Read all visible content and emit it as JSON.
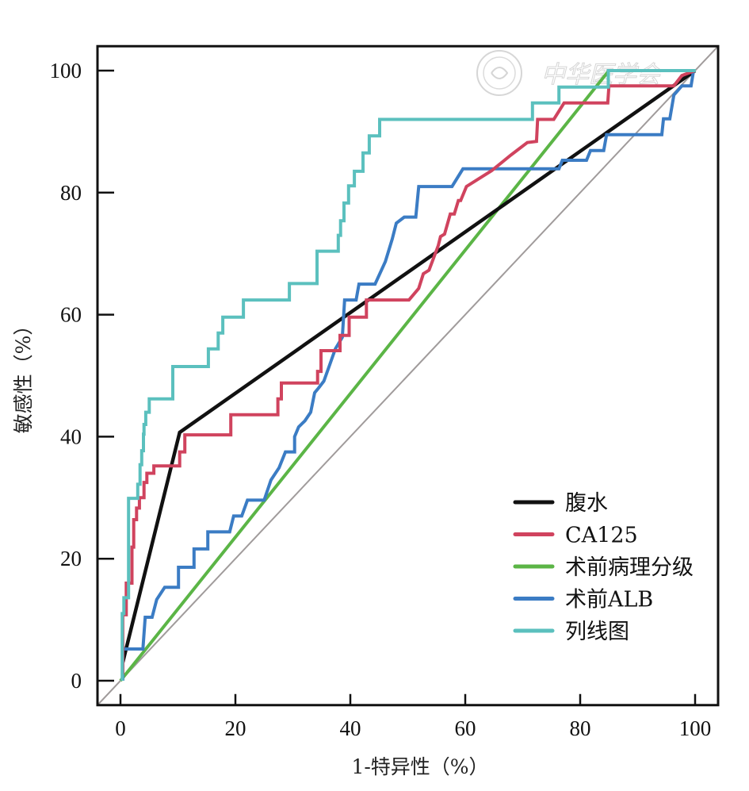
{
  "chart_data": {
    "type": "line",
    "title": "",
    "xlabel": "1-特异性（%）",
    "ylabel": "敏感性（%）",
    "xlim": [
      -4,
      104
    ],
    "ylim": [
      -4,
      104
    ],
    "xticks": [
      0,
      20,
      40,
      60,
      80,
      100
    ],
    "yticks": [
      0,
      20,
      40,
      60,
      80,
      100
    ],
    "xtick_labels": [
      "0",
      "20",
      "40",
      "60",
      "80",
      "100"
    ],
    "ytick_labels": [
      "0",
      "20",
      "40",
      "60",
      "80",
      "100"
    ],
    "grid": false,
    "legend_position": "bottom-right",
    "reference_line": {
      "name": "diagonal",
      "color": "#a09b9b",
      "x": [
        -4,
        104
      ],
      "y": [
        -4,
        104
      ]
    },
    "series": [
      {
        "name": "腹水",
        "color": "#111111",
        "x": [
          0.4,
          10.3,
          100
        ],
        "y": [
          3.0,
          40.7,
          100
        ]
      },
      {
        "name": "CA125",
        "color": "#d0435e",
        "x": [
          0.4,
          0.4,
          1.0,
          1.0,
          2.0,
          2.0,
          2.3,
          2.3,
          2.8,
          2.8,
          3.3,
          3.3,
          4.1,
          4.1,
          4.6,
          4.6,
          5.8,
          5.8,
          10.3,
          10.3,
          11.2,
          11.2,
          19.2,
          19.2,
          27.4,
          27.4,
          28.0,
          28.0,
          34.3,
          34.3,
          34.9,
          34.9,
          38.2,
          38.2,
          39.8,
          39.8,
          42.8,
          42.8,
          50.2,
          51.9,
          52.7,
          53.7,
          55.3,
          55.7,
          56.4,
          57.4,
          58.1,
          58.8,
          59.2,
          60.2,
          64.6,
          68.0,
          70.8,
          72.4,
          72.6,
          75.4,
          77.2,
          80.8,
          84.8,
          85.0,
          96.3,
          97.7,
          100
        ],
        "y": [
          1.0,
          10.8,
          10.8,
          16.0,
          16.0,
          21.9,
          21.9,
          26.4,
          26.4,
          28.3,
          28.3,
          30.0,
          30.0,
          32.5,
          32.5,
          34.0,
          34.0,
          35.2,
          35.2,
          37.5,
          37.5,
          40.3,
          40.3,
          43.6,
          43.6,
          46.2,
          46.2,
          48.8,
          48.8,
          50.7,
          50.7,
          54.1,
          54.1,
          56.6,
          56.6,
          59.6,
          59.6,
          62.4,
          62.4,
          64.3,
          66.7,
          67.3,
          71.3,
          72.8,
          73.2,
          76.5,
          76.5,
          78.7,
          78.7,
          81.0,
          83.6,
          86.2,
          88.2,
          88.4,
          92.0,
          92.0,
          94.7,
          94.7,
          94.7,
          97.5,
          97.5,
          99.2,
          100
        ]
      },
      {
        "name": "术前病理分级",
        "color": "#5bb546",
        "x": [
          0,
          85,
          100
        ],
        "y": [
          0,
          100,
          100
        ]
      },
      {
        "name": "术前ALB",
        "color": "#3b7cc4",
        "x": [
          0.4,
          0.4,
          3.9,
          4.3,
          5.5,
          6.3,
          7.7,
          10.1,
          10.1,
          12.8,
          12.8,
          15.2,
          15.2,
          19.0,
          19.7,
          21.1,
          22.1,
          25.0,
          26.2,
          27.6,
          28.7,
          30.3,
          30.3,
          31.0,
          32.1,
          33.1,
          33.8,
          34.5,
          35.4,
          36.3,
          37.4,
          38.6,
          39.0,
          39.3,
          41.0,
          41.5,
          44.3,
          46.1,
          47.3,
          48.0,
          49.4,
          51.4,
          51.9,
          57.7,
          59.6,
          76.3,
          76.9,
          81.1,
          81.8,
          84.1,
          84.6,
          94.2,
          94.5,
          95.6,
          96.3,
          97.7,
          99.3,
          99.7
        ],
        "y": [
          0,
          5.2,
          5.2,
          10.4,
          10.4,
          13.3,
          15.3,
          15.3,
          18.6,
          18.6,
          21.6,
          21.6,
          24.4,
          24.4,
          27.0,
          27.0,
          29.6,
          29.6,
          32.9,
          34.9,
          37.5,
          37.5,
          40.0,
          41.6,
          42.6,
          44.0,
          47.2,
          48.0,
          49.1,
          51.5,
          54.4,
          56.3,
          62.4,
          62.4,
          62.4,
          65.0,
          65.0,
          68.7,
          72.4,
          75.0,
          76.0,
          76.0,
          81.0,
          81.0,
          83.9,
          83.9,
          85.3,
          85.3,
          86.9,
          86.9,
          89.5,
          89.5,
          92.1,
          92.1,
          96.0,
          97.5,
          97.5,
          99.8
        ]
      },
      {
        "name": "列线图",
        "color": "#5bc0be",
        "x": [
          0.3,
          0.3,
          0.6,
          0.6,
          1.4,
          1.4,
          3.0,
          3.0,
          3.4,
          3.4,
          3.7,
          3.7,
          4.0,
          4.0,
          4.1,
          4.1,
          4.4,
          4.4,
          5.0,
          5.0,
          5.2,
          5.2,
          9.1,
          9.1,
          15.3,
          15.3,
          17.0,
          17.0,
          17.8,
          17.8,
          21.4,
          21.4,
          29.4,
          29.4,
          34.2,
          34.2,
          37.9,
          37.9,
          38.3,
          38.3,
          38.9,
          38.9,
          39.7,
          39.7,
          40.7,
          40.7,
          42.2,
          42.2,
          43.3,
          43.3,
          45.1,
          45.1,
          71.7,
          71.7,
          76.3,
          76.3,
          84.9,
          84.9,
          100.1
        ],
        "y": [
          0,
          11.0,
          11.0,
          13.6,
          13.6,
          29.9,
          29.9,
          32.2,
          32.2,
          35.4,
          35.4,
          37.7,
          37.7,
          40.4,
          40.4,
          42.0,
          42.0,
          44.0,
          44.0,
          46.2,
          46.2,
          46.2,
          46.2,
          51.5,
          51.5,
          54.4,
          54.4,
          57.0,
          57.0,
          59.6,
          59.6,
          62.4,
          62.4,
          65.1,
          65.1,
          70.4,
          70.4,
          73.0,
          73.0,
          75.4,
          75.4,
          78.3,
          78.3,
          81.1,
          81.1,
          83.5,
          83.5,
          86.5,
          86.5,
          89.3,
          89.3,
          92.0,
          92.0,
          94.7,
          94.7,
          97.3,
          97.3,
          100,
          100
        ]
      }
    ],
    "legend": [
      "腹水",
      "CA125",
      "术前病理分级",
      "术前ALB",
      "列线图"
    ],
    "watermark": {
      "text": "中华医学会",
      "kind": "logo-watermark"
    }
  }
}
